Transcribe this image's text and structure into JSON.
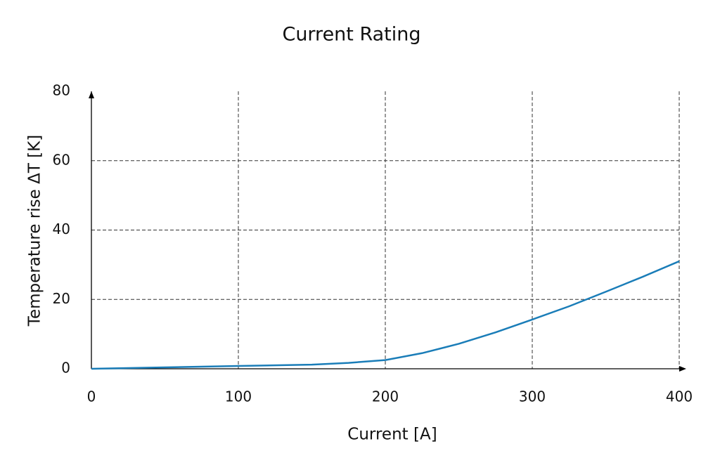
{
  "chart_data": {
    "type": "line",
    "title": "Current Rating",
    "x_label": "Current [A]",
    "y_label": "Temperature rise ΔT [K]",
    "x": [
      0,
      50,
      100,
      150,
      175,
      200,
      225,
      250,
      275,
      300,
      325,
      350,
      375,
      400
    ],
    "series": [
      {
        "name": "Temperature rise",
        "color": "#1a7db8",
        "values": [
          0,
          0.4,
          0.8,
          1.2,
          1.7,
          2.5,
          4.5,
          7.2,
          10.5,
          14.2,
          18,
          22.2,
          26.5,
          31
        ]
      }
    ],
    "xlim": [
      0,
      400
    ],
    "xticks": [
      0,
      100,
      200,
      300,
      400
    ],
    "ylim": [
      0,
      80
    ],
    "yticks": [
      0,
      20,
      40,
      60,
      80
    ],
    "grid": true
  }
}
